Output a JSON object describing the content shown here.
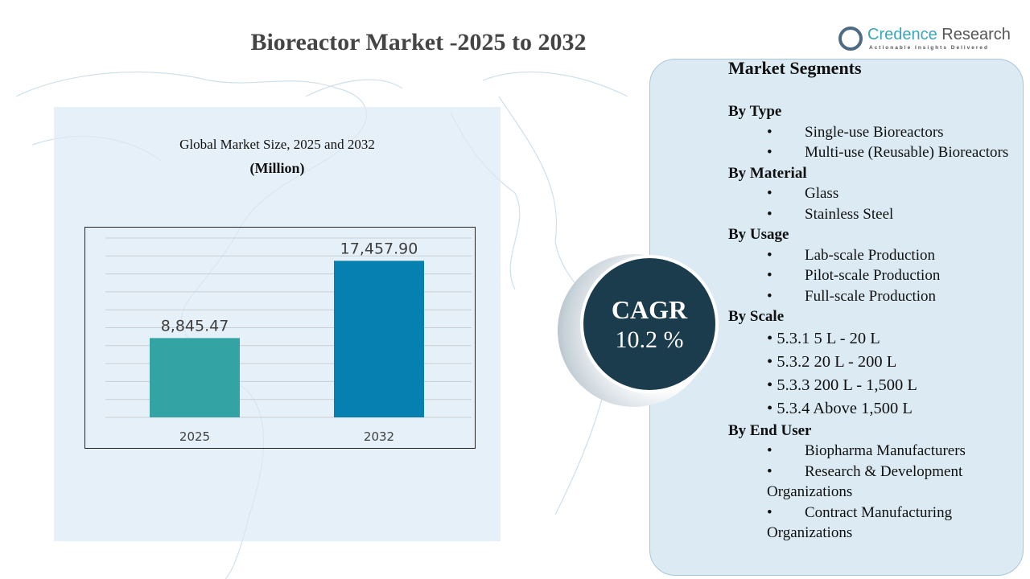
{
  "title": "Bioreactor Market -2025 to 2032",
  "logo": {
    "name_part1": "Credence",
    "name_part2": " Research",
    "tagline": "Actionable Insights Delivered"
  },
  "chart_subtitle": "Global Market Size, 2025 and 2032",
  "chart_unit": "(Million)",
  "chart_data": {
    "type": "bar",
    "categories": [
      "2025",
      "2032"
    ],
    "values": [
      8845.47,
      17457.9
    ],
    "data_labels": [
      "8,845.47",
      "17,457.90"
    ],
    "colors": [
      "#33a3a3",
      "#0580b0"
    ],
    "title": "Global Market Size, 2025 and 2032",
    "ylabel": "(Million)",
    "ylim": [
      0,
      20000
    ],
    "grid": true
  },
  "cagr": {
    "label": "CAGR",
    "value": "10.2 %"
  },
  "segments": {
    "title": "Market Segments",
    "groups": [
      {
        "heading": "By Type",
        "items": [
          "Single-use Bioreactors",
          "Multi-use (Reusable) Bioreactors"
        ]
      },
      {
        "heading": "By Material",
        "items": [
          "Glass",
          "Stainless Steel"
        ]
      },
      {
        "heading": "By Usage",
        "items": [
          "Lab-scale Production",
          "Pilot-scale Production",
          "Full-scale Production"
        ]
      },
      {
        "heading": "By Scale",
        "items": [
          "5.3.1 5 L - 20 L",
          "5.3.2 20 L - 200 L",
          "5.3.3 200 L - 1,500 L",
          "5.3.4 Above 1,500 L"
        ]
      },
      {
        "heading": "By End User",
        "items": [
          "Biopharma Manufacturers",
          "Research & Development Organizations",
          "Contract Manufacturing Organizations"
        ]
      }
    ]
  }
}
